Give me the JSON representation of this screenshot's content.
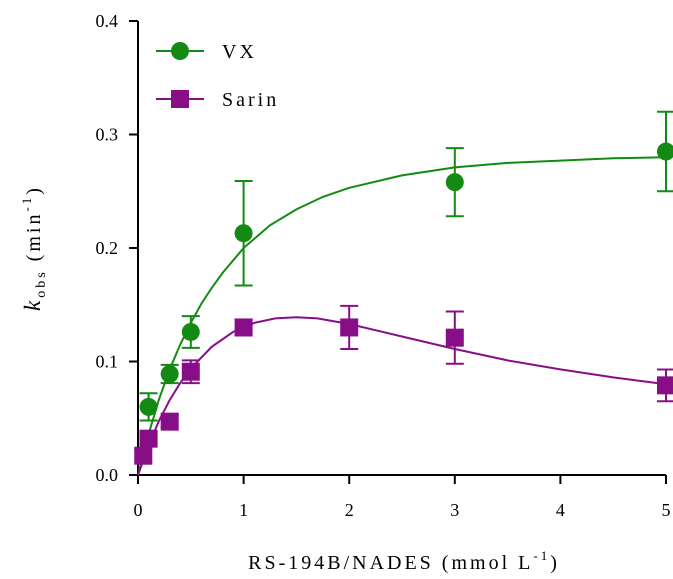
{
  "chart_data": {
    "type": "scatter",
    "xlabel": {
      "prefix": "RS-194B/NADES (mmol L",
      "superscript": "-1",
      "suffix": ")"
    },
    "ylabel": {
      "italic": "k",
      "subscript": "obs",
      "prefix": " (min",
      "superscript": "-1",
      "suffix": ")"
    },
    "xlim": [
      0,
      5
    ],
    "ylim": [
      0,
      0.4
    ],
    "x_ticks": [
      0,
      1,
      2,
      3,
      4,
      5
    ],
    "x_tick_labels": [
      "0",
      "1",
      "2",
      "3",
      "4",
      "5"
    ],
    "y_ticks": [
      0,
      0.1,
      0.2,
      0.3,
      0.4
    ],
    "y_tick_labels": [
      "0.0",
      "0.1",
      "0.2",
      "0.3",
      "0.4"
    ],
    "grid": false,
    "legend_position": "top-left",
    "series": [
      {
        "name": "VX",
        "marker": "circle",
        "color": "#138a13",
        "x": [
          0.1,
          0.3,
          0.5,
          1,
          3,
          5
        ],
        "y": [
          0.06,
          0.089,
          0.126,
          0.213,
          0.258,
          0.285
        ],
        "error": [
          0.012,
          0.008,
          0.014,
          0.046,
          0.03,
          0.035
        ],
        "fit": {
          "x": [
            0,
            0.1,
            0.2,
            0.3,
            0.4,
            0.5,
            0.6,
            0.7,
            0.8,
            1.0,
            1.25,
            1.5,
            1.75,
            2.0,
            2.5,
            3.0,
            3.5,
            4.0,
            4.5,
            5.0
          ],
          "y": [
            0,
            0.036,
            0.067,
            0.093,
            0.115,
            0.134,
            0.151,
            0.165,
            0.178,
            0.2,
            0.22,
            0.234,
            0.245,
            0.253,
            0.264,
            0.271,
            0.275,
            0.277,
            0.279,
            0.28
          ]
        }
      },
      {
        "name": "Sarin",
        "marker": "square",
        "color": "#880e88",
        "x": [
          0.05,
          0.1,
          0.3,
          0.5,
          1,
          2,
          3,
          5
        ],
        "y": [
          0.017,
          0.032,
          0.047,
          0.091,
          0.13,
          0.13,
          0.121,
          0.079
        ],
        "error": [
          0.005,
          0.004,
          0.005,
          0.01,
          0.007,
          0.019,
          0.023,
          0.014
        ],
        "fit": {
          "x": [
            0,
            0.1,
            0.2,
            0.3,
            0.4,
            0.5,
            0.7,
            0.9,
            1.1,
            1.3,
            1.5,
            1.7,
            2.0,
            2.5,
            3.0,
            3.5,
            4.0,
            4.5,
            5.0
          ],
          "y": [
            0,
            0.026,
            0.048,
            0.066,
            0.081,
            0.094,
            0.113,
            0.126,
            0.134,
            0.138,
            0.139,
            0.138,
            0.133,
            0.122,
            0.111,
            0.101,
            0.093,
            0.086,
            0.08
          ]
        }
      }
    ]
  }
}
